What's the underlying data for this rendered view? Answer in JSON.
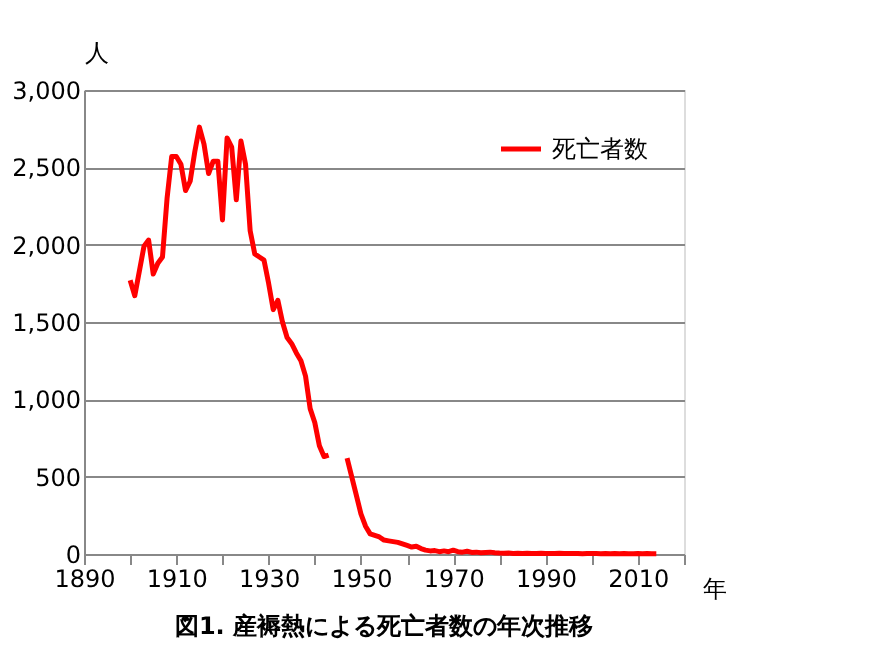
{
  "chart_data": {
    "type": "line",
    "title": "図1. 産褥熱による死亡者数の年次推移",
    "xlabel": "年",
    "ylabel": "人",
    "x": [
      1900,
      1901,
      1902,
      1903,
      1904,
      1905,
      1906,
      1907,
      1908,
      1909,
      1910,
      1911,
      1912,
      1913,
      1914,
      1915,
      1916,
      1917,
      1918,
      1919,
      1920,
      1921,
      1922,
      1923,
      1924,
      1925,
      1926,
      1927,
      1928,
      1929,
      1930,
      1931,
      1932,
      1933,
      1934,
      1935,
      1936,
      1937,
      1938,
      1939,
      1940,
      1941,
      1942,
      1943,
      1944,
      1945,
      1946,
      1947,
      1948,
      1949,
      1950,
      1951,
      1952,
      1953,
      1954,
      1955,
      1956,
      1957,
      1958,
      1959,
      1960,
      1961,
      1962,
      1963,
      1964,
      1965,
      1966,
      1967,
      1968,
      1969,
      1970,
      1971,
      1972,
      1973,
      1974,
      1975,
      1976,
      1977,
      1978,
      1979,
      1980,
      1981,
      1982,
      1983,
      1984,
      1985,
      1986,
      1987,
      1988,
      1989,
      1990,
      1991,
      1992,
      1993,
      1994,
      1995,
      1996,
      1997,
      1998,
      1999,
      2000,
      2001,
      2002,
      2003,
      2004,
      2005,
      2006,
      2007,
      2008,
      2009,
      2010,
      2011,
      2012,
      2013,
      2014
    ],
    "series": [
      {
        "name": "死亡者数",
        "color": "#ff0000",
        "values": [
          1770,
          1670,
          1830,
          1990,
          2030,
          1810,
          1880,
          1920,
          2300,
          2570,
          2570,
          2520,
          2350,
          2410,
          2600,
          2760,
          2650,
          2460,
          2540,
          2540,
          2160,
          2690,
          2630,
          2290,
          2670,
          2520,
          2090,
          1940,
          1920,
          1900,
          1750,
          1580,
          1640,
          1500,
          1400,
          1360,
          1300,
          1250,
          1150,
          940,
          850,
          700,
          630,
          640,
          null,
          null,
          null,
          620,
          500,
          380,
          260,
          180,
          130,
          120,
          110,
          90,
          85,
          80,
          75,
          65,
          55,
          45,
          50,
          35,
          25,
          20,
          22,
          15,
          20,
          15,
          25,
          15,
          12,
          18,
          10,
          12,
          8,
          10,
          12,
          8,
          6,
          5,
          6,
          4,
          5,
          4,
          5,
          3,
          4,
          5,
          3,
          4,
          3,
          5,
          4,
          3,
          4,
          3,
          2,
          3,
          4,
          3,
          2,
          3,
          2,
          3,
          2,
          3,
          2,
          2,
          3,
          2,
          3,
          2,
          2
        ]
      }
    ],
    "xlim": [
      1890,
      2020
    ],
    "xticks": [
      1890,
      {
        "value": 1900,
        "label": null
      },
      1910,
      {
        "value": 1920,
        "label": null
      },
      1930,
      {
        "value": 1940,
        "label": null
      },
      1950,
      {
        "value": 1960,
        "label": null
      },
      1970,
      {
        "value": 1980,
        "label": null
      },
      1990,
      {
        "value": 2000,
        "label": null
      },
      2010,
      {
        "value": 2020,
        "label": null
      }
    ],
    "ylim": [
      0,
      3000
    ],
    "yticks": [
      {
        "value": 0,
        "label": "0"
      },
      {
        "value": 500,
        "label": "500"
      },
      {
        "value": 1000,
        "label": "1,000"
      },
      {
        "value": 1500,
        "label": "1,500"
      },
      {
        "value": 2000,
        "label": "2,000"
      },
      {
        "value": 2500,
        "label": "2,500"
      },
      {
        "value": 3000,
        "label": "3,000"
      }
    ],
    "grid": "y",
    "legend": "top right",
    "line_style": "solid"
  }
}
